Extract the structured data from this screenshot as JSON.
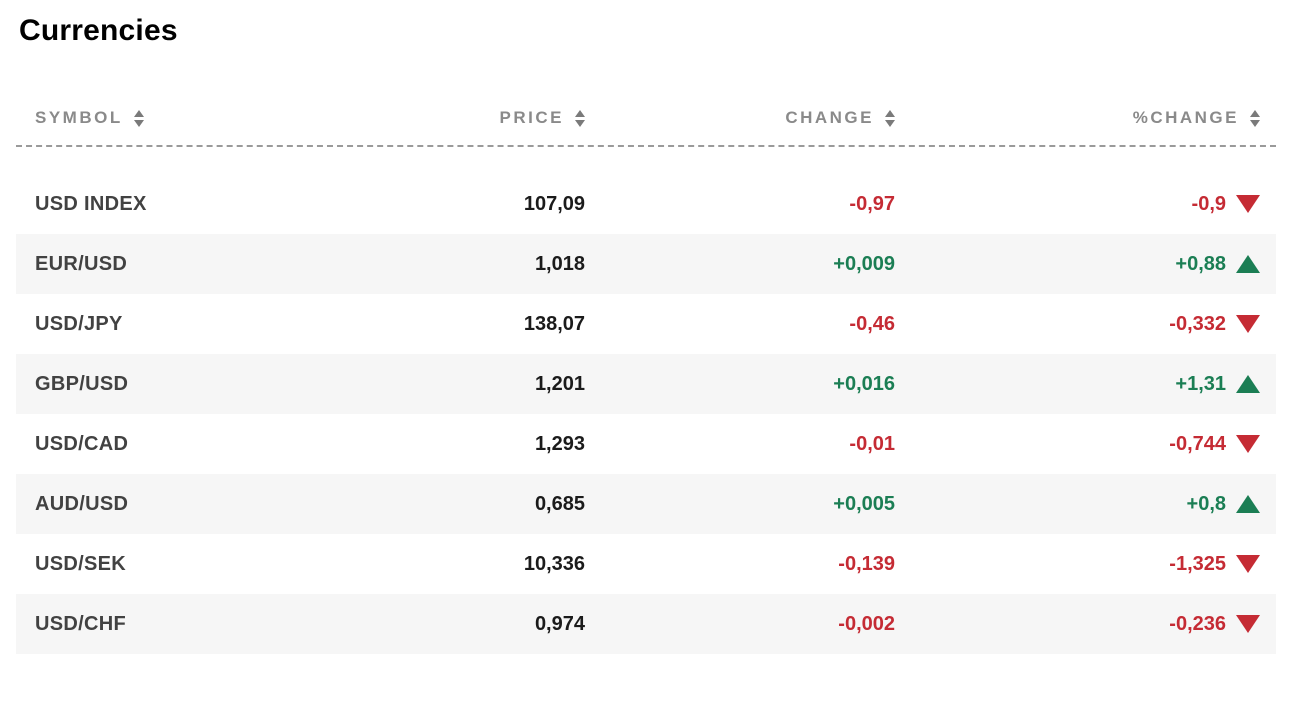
{
  "page": {
    "title": "Currencies"
  },
  "table": {
    "columns": [
      {
        "key": "symbol",
        "label": "SYMBOL"
      },
      {
        "key": "price",
        "label": "PRICE"
      },
      {
        "key": "change",
        "label": "CHANGE"
      },
      {
        "key": "pct_change",
        "label": "%CHANGE"
      }
    ],
    "rows": [
      {
        "symbol": "USD INDEX",
        "price": "107,09",
        "change": "-0,97",
        "pct_change": "-0,9",
        "direction": "down"
      },
      {
        "symbol": "EUR/USD",
        "price": "1,018",
        "change": "+0,009",
        "pct_change": "+0,88",
        "direction": "up"
      },
      {
        "symbol": "USD/JPY",
        "price": "138,07",
        "change": "-0,46",
        "pct_change": "-0,332",
        "direction": "down"
      },
      {
        "symbol": "GBP/USD",
        "price": "1,201",
        "change": "+0,016",
        "pct_change": "+1,31",
        "direction": "up"
      },
      {
        "symbol": "USD/CAD",
        "price": "1,293",
        "change": "-0,01",
        "pct_change": "-0,744",
        "direction": "down"
      },
      {
        "symbol": "AUD/USD",
        "price": "0,685",
        "change": "+0,005",
        "pct_change": "+0,8",
        "direction": "up"
      },
      {
        "symbol": "USD/SEK",
        "price": "10,336",
        "change": "-0,139",
        "pct_change": "-1,325",
        "direction": "down"
      },
      {
        "symbol": "USD/CHF",
        "price": "0,974",
        "change": "-0,002",
        "pct_change": "-0,236",
        "direction": "down"
      }
    ],
    "colors": {
      "positive": "#1b7e54",
      "negative": "#c52b34",
      "header_text": "#8a8a8a",
      "row_alt_background": "#f6f6f6",
      "symbol_text": "#424242",
      "value_text": "#1b1b1b"
    }
  }
}
